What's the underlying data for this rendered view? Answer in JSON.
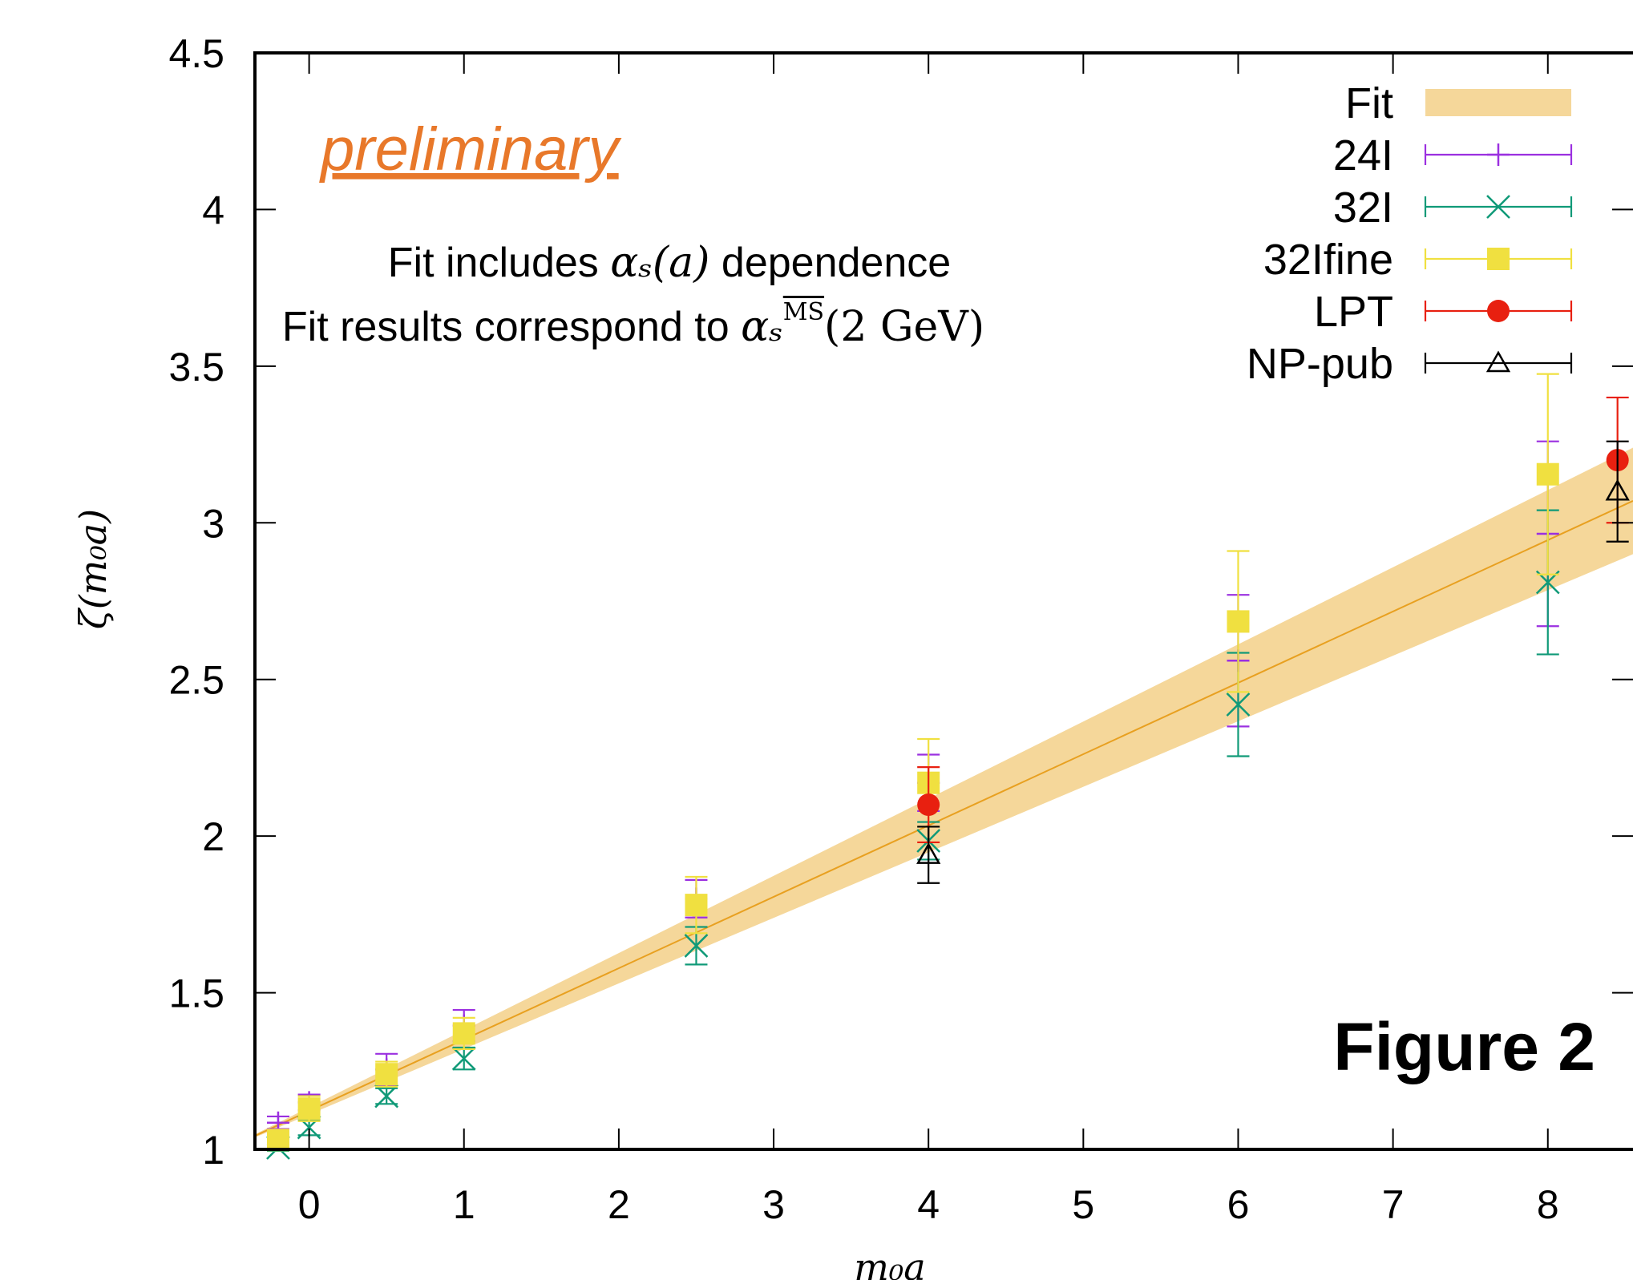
{
  "chart_data": {
    "type": "scatter",
    "title": "",
    "xlabel": "m₀a",
    "ylabel": "ζ(m₀a)",
    "xlim": [
      -0.35,
      8.55
    ],
    "ylim": [
      1,
      4.5
    ],
    "xticks": [
      "0",
      "1",
      "2",
      "3",
      "4",
      "5",
      "6",
      "7",
      "8"
    ],
    "yticks": [
      "1",
      "1.5",
      "2",
      "2.5",
      "3",
      "3.5",
      "4",
      "4.5"
    ],
    "grid": false,
    "legend_position": "top-right",
    "fit_band": {
      "name": "Fit",
      "color": "#f5d79a",
      "line_color": "#e8a020",
      "x": [
        -0.35,
        8.55
      ],
      "center": [
        1.043,
        3.07
      ],
      "lower": [
        1.038,
        2.9
      ],
      "upper": [
        1.048,
        3.24
      ]
    },
    "series": [
      {
        "name": "24I",
        "color": "#9b30e0",
        "marker": "plus",
        "points": [
          {
            "x": -0.2,
            "y": 1.085,
            "err": 0.02
          },
          {
            "x": 0.0,
            "y": 1.15,
            "err": 0.025
          },
          {
            "x": 0.5,
            "y": 1.255,
            "err": 0.05
          },
          {
            "x": 1.0,
            "y": 1.395,
            "err": 0.05
          },
          {
            "x": 2.5,
            "y": 1.8,
            "err": 0.06
          },
          {
            "x": 4.0,
            "y": 2.17,
            "err": 0.09
          },
          {
            "x": 6.0,
            "y": 2.56,
            "err": 0.21
          },
          {
            "x": 8.0,
            "y": 2.965,
            "err": 0.295
          }
        ]
      },
      {
        "name": "32I",
        "color": "#109a78",
        "marker": "x",
        "points": [
          {
            "x": -0.2,
            "y": 1.005,
            "err": 0.01
          },
          {
            "x": 0.0,
            "y": 1.07,
            "err": 0.025
          },
          {
            "x": 0.5,
            "y": 1.17,
            "err": 0.025
          },
          {
            "x": 1.0,
            "y": 1.29,
            "err": 0.035
          },
          {
            "x": 2.5,
            "y": 1.65,
            "err": 0.06
          },
          {
            "x": 4.0,
            "y": 1.985,
            "err": 0.06
          },
          {
            "x": 6.0,
            "y": 2.42,
            "err": 0.165
          },
          {
            "x": 8.0,
            "y": 2.81,
            "err": 0.23
          }
        ]
      },
      {
        "name": "32Ifine",
        "color": "#f0e040",
        "marker": "square",
        "points": [
          {
            "x": -0.2,
            "y": 1.03,
            "err": 0.015
          },
          {
            "x": 0.0,
            "y": 1.13,
            "err": 0.04
          },
          {
            "x": 0.5,
            "y": 1.24,
            "err": 0.04
          },
          {
            "x": 1.0,
            "y": 1.37,
            "err": 0.05
          },
          {
            "x": 2.5,
            "y": 1.78,
            "err": 0.09
          },
          {
            "x": 4.0,
            "y": 2.17,
            "err": 0.14
          },
          {
            "x": 6.0,
            "y": 2.685,
            "err": 0.225
          },
          {
            "x": 8.0,
            "y": 3.155,
            "err": 0.32
          }
        ]
      },
      {
        "name": "LPT",
        "color": "#e82010",
        "marker": "circle",
        "points": [
          {
            "x": 4.0,
            "y": 2.1,
            "err": 0.12
          },
          {
            "x": 8.45,
            "y": 3.2,
            "err": 0.2
          }
        ]
      },
      {
        "name": "NP-pub",
        "color": "#000000",
        "marker": "triangle",
        "points": [
          {
            "x": 4.0,
            "y": 1.94,
            "err": 0.09
          },
          {
            "x": 8.45,
            "y": 3.1,
            "err": 0.16
          }
        ]
      }
    ],
    "annotations": {
      "preliminary": "preliminary",
      "note_line1_a": "Fit includes ",
      "note_line1_math": "αₛ(a)",
      "note_line1_b": " dependence",
      "note_line2_a": "Fit results correspond to ",
      "note_line2_math": "αₛ",
      "note_line2_sup": "MS",
      "note_line2_b": "(2 GeV)",
      "figure_label": "Figure 2"
    }
  }
}
